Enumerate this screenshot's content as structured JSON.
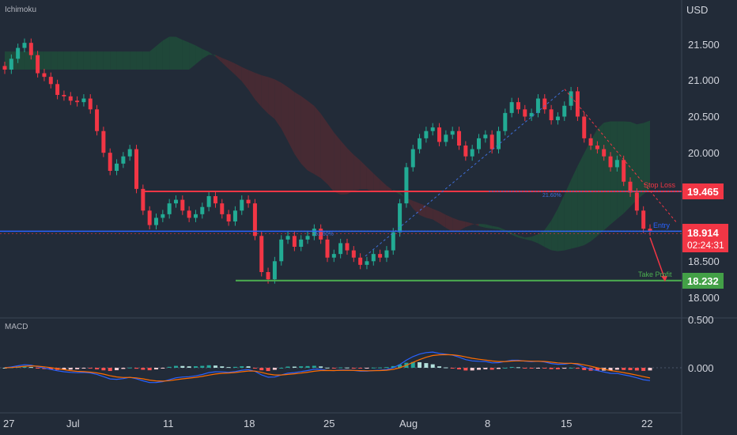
{
  "header": {
    "indicator_label": "Ichimoku",
    "currency": "USD"
  },
  "macd_pane": {
    "label": "MACD"
  },
  "colors": {
    "background": "#222b38",
    "up": "#22ab94",
    "down": "#f23645",
    "cloud_bull": "#1f4a3a",
    "cloud_bear": "#4a2a33",
    "stop_loss": "#f23645",
    "entry": "#2962ff",
    "take_profit": "#4caf50",
    "macd_line": "#2962ff",
    "signal_line": "#ff6d00"
  },
  "chart_data": {
    "type": "line",
    "title": "",
    "series": [
      {
        "role": "price",
        "values": [
          21.15,
          21.3,
          21.45,
          21.52,
          21.35,
          21.1,
          21.05,
          20.95,
          20.8,
          20.78,
          20.72,
          20.7,
          20.75,
          20.6,
          20.3,
          20.0,
          19.75,
          19.85,
          19.95,
          20.05,
          19.5,
          19.2,
          19.0,
          19.1,
          19.15,
          19.3,
          19.35,
          19.2,
          19.1,
          19.15,
          19.25,
          19.4,
          19.3,
          19.15,
          19.05,
          19.2,
          19.35,
          19.3,
          18.85,
          18.35,
          18.25,
          18.5,
          18.8,
          18.85,
          18.7,
          18.8,
          18.85,
          18.95,
          18.8,
          18.55,
          18.6,
          18.75,
          18.65,
          18.55,
          18.45,
          18.5,
          18.6,
          18.55,
          18.65,
          18.9,
          19.3,
          19.8,
          20.05,
          20.2,
          20.3,
          20.35,
          20.15,
          20.25,
          20.3,
          20.1,
          19.95,
          20.05,
          20.2,
          20.25,
          20.05,
          20.3,
          20.55,
          20.7,
          20.6,
          20.5,
          20.55,
          20.75,
          20.6,
          20.45,
          20.5,
          20.65,
          20.85,
          20.5,
          20.2,
          20.1,
          20.05,
          19.95,
          19.8,
          19.9,
          19.6,
          19.45,
          19.2,
          18.95,
          18.914
        ]
      },
      {
        "name": "Stop Loss",
        "values": [
          19.465
        ]
      },
      {
        "name": "Entry",
        "values": [
          18.914
        ]
      },
      {
        "name": "Take Profit",
        "values": [
          18.232
        ]
      }
    ],
    "x_ticks": [
      "27",
      "Jul",
      "11",
      "18",
      "25",
      "Aug",
      "8",
      "15",
      "22"
    ],
    "y_ticks": [
      "21.500",
      "21.000",
      "20.500",
      "20.000",
      "19.465",
      "18.914",
      "18.500",
      "18.232",
      "18.000"
    ],
    "ylim": [
      17.95,
      21.75
    ],
    "annotations": {
      "stop_loss_label": "Stop Loss",
      "entry_label": "Entry",
      "take_profit_label": "Take Profit",
      "fib_upper": "21.60%",
      "fib_lower": "61.60%",
      "current_price": "18.914",
      "countdown": "02:24:31",
      "stop_value": "19.465",
      "tp_value": "18.232"
    },
    "macd": {
      "y_ticks": [
        "0.500",
        "0.000"
      ],
      "ylim": [
        -0.6,
        0.6
      ]
    }
  }
}
